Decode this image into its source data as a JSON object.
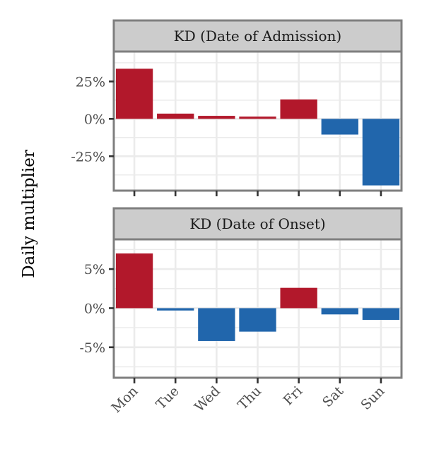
{
  "colors": {
    "positive": "#b2182b",
    "negative": "#2166ac",
    "strip_bg": "#cccccc",
    "border": "#7f7f7f",
    "grid": "#ebebeb"
  },
  "chart_data": {
    "type": "bar",
    "ylabel": "Daily multiplier",
    "categories": [
      "Mon",
      "Tue",
      "Wed",
      "Thu",
      "Fri",
      "Sat",
      "Sun"
    ],
    "facets": [
      {
        "title": "KD (Date of Admission)",
        "values": [
          33.5,
          3.5,
          2.0,
          1.5,
          13.0,
          -10.5,
          -44.5
        ],
        "ylim": [
          -48,
          45
        ],
        "ticks": [
          25,
          0,
          -25
        ],
        "tick_labels": [
          "25%",
          "0%",
          "-25%"
        ]
      },
      {
        "title": "KD (Date of Onset)",
        "values": [
          7.0,
          -0.3,
          -4.2,
          -3.0,
          2.6,
          -0.8,
          -1.5
        ],
        "ylim": [
          -8.9,
          8.8
        ],
        "ticks": [
          5,
          0,
          -5
        ],
        "tick_labels": [
          "5%",
          "0%",
          "-5%"
        ]
      }
    ]
  }
}
